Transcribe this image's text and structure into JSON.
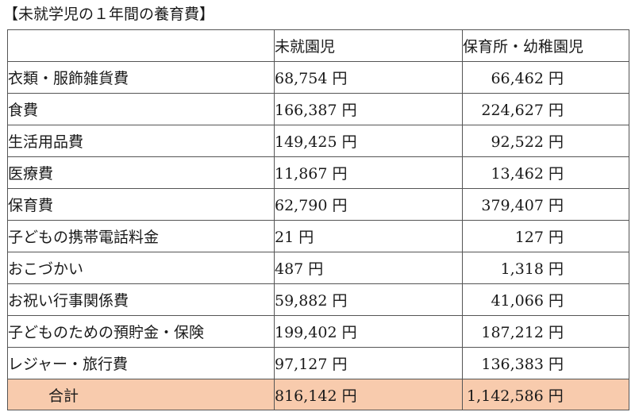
{
  "title": "【未就学児の１年間の養育費】",
  "table": {
    "headers": [
      "",
      "未就園児",
      "保育所・幼稚園児"
    ],
    "rows": [
      {
        "item": "衣類・服飾雑貨費",
        "preschool": "68,754 円",
        "nursery": "66,462 円"
      },
      {
        "item": "食費",
        "preschool": "166,387 円",
        "nursery": "224,627 円"
      },
      {
        "item": "生活用品費",
        "preschool": "149,425 円",
        "nursery": "92,522 円"
      },
      {
        "item": "医療費",
        "preschool": "11,867 円",
        "nursery": "13,462 円"
      },
      {
        "item": "保育費",
        "preschool": "62,790 円",
        "nursery": "379,407 円"
      },
      {
        "item": "子どもの携帯電話料金",
        "preschool": "21 円",
        "nursery": "127 円"
      },
      {
        "item": "おこづかい",
        "preschool": "487 円",
        "nursery": "1,318 円"
      },
      {
        "item": "お祝い行事関係費",
        "preschool": "59,882 円",
        "nursery": "41,066 円"
      },
      {
        "item": "子どものための預貯金・保険",
        "preschool": "199,402 円",
        "nursery": "187,212 円"
      },
      {
        "item": "レジャー・旅行費",
        "preschool": "97,127 円",
        "nursery": "136,383 円"
      }
    ],
    "total": {
      "item": "合計",
      "preschool": "816,142 円",
      "nursery": "1,142,586 円"
    }
  },
  "colors": {
    "total_row_background": "#f8cbad",
    "border": "#555555"
  }
}
